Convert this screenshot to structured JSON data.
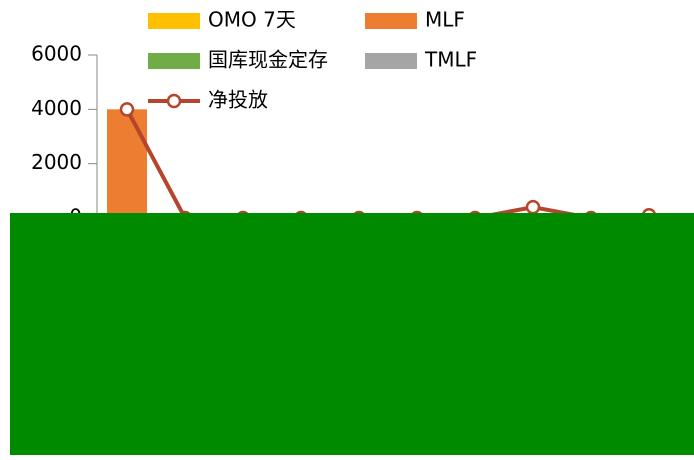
{
  "chart_data": {
    "type": "bar",
    "categories": [
      null,
      null,
      null,
      null,
      null,
      null,
      null,
      null,
      null,
      null
    ],
    "series": [
      {
        "name": "OMO 7天",
        "color": "#ffc000",
        "values": [
          0,
          0,
          0,
          0,
          0,
          0,
          0,
          0,
          0,
          0
        ]
      },
      {
        "name": "MLF",
        "color": "#ed7d31",
        "values": [
          4000,
          0,
          0,
          0,
          0,
          0,
          0,
          0,
          0,
          0
        ]
      },
      {
        "name": "国库现金定存",
        "color": "#70ad47",
        "values": [
          0,
          0,
          0,
          0,
          0,
          0,
          0,
          0,
          0,
          0
        ]
      },
      {
        "name": "TMLF",
        "color": "#a5a5a5",
        "values": [
          0,
          0,
          0,
          0,
          0,
          0,
          0,
          0,
          0,
          0
        ]
      },
      {
        "name": "净投放",
        "type": "line",
        "color": "#b5452c",
        "values": [
          4000,
          0,
          0,
          0,
          0,
          0,
          0,
          400,
          0,
          100
        ]
      }
    ],
    "ylim": [
      0,
      6000
    ],
    "yticks": [
      0,
      2000,
      4000,
      6000
    ]
  }
}
